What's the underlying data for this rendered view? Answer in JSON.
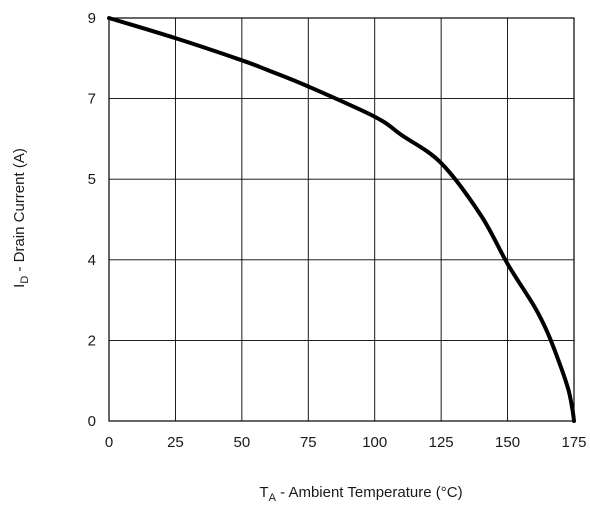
{
  "chart_data": {
    "type": "line",
    "xlabel": {
      "main": "T",
      "sub": "A",
      "rest": " - Ambient Temperature (°C)"
    },
    "ylabel": {
      "main": "I",
      "sub": "D",
      "rest": " - Drain Current (A)"
    },
    "x_ticks": [
      "0",
      "25",
      "50",
      "75",
      "100",
      "125",
      "150",
      "175"
    ],
    "y_ticks": [
      "0",
      "2",
      "4",
      "5",
      "7",
      "9"
    ],
    "xlim": [
      0,
      175
    ],
    "grid": true,
    "series": [
      {
        "color": "#000000",
        "points": [
          [
            0,
            9.0
          ],
          [
            25,
            8.5
          ],
          [
            50,
            7.95
          ],
          [
            60,
            7.7
          ],
          [
            75,
            7.3
          ],
          [
            100,
            6.55
          ],
          [
            110,
            6.1
          ],
          [
            125,
            5.4
          ],
          [
            140,
            4.55
          ],
          [
            150,
            3.9
          ],
          [
            160,
            2.85
          ],
          [
            165,
            2.2
          ],
          [
            170,
            1.35
          ],
          [
            173,
            0.75
          ],
          [
            174.5,
            0.25
          ],
          [
            175,
            0.0
          ]
        ]
      }
    ]
  }
}
